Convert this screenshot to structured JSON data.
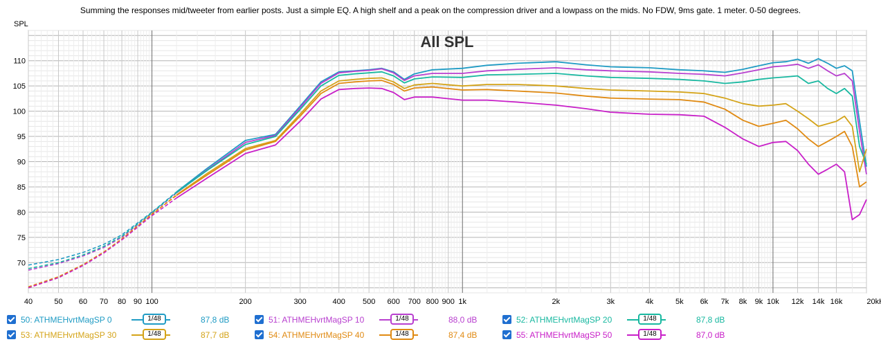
{
  "header": {
    "note": "Summing the responses mid/tweeter from earlier posts. Just a simple EQ. A high shelf and a peak on the compression driver and a lowpass on the mids. No FDW, 9ms gate. 1 meter. 0-50 degrees."
  },
  "chart_data": {
    "type": "line",
    "title": "All SPL",
    "ylabel": "SPL",
    "xlabel": "",
    "x_scale": "log",
    "xlim": [
      40,
      20000
    ],
    "ylim": [
      64,
      116
    ],
    "y_ticks": [
      70,
      75,
      80,
      85,
      90,
      95,
      100,
      105,
      110
    ],
    "y_tick_labels": [
      "70",
      "75",
      "80",
      "85",
      "90",
      "95",
      "100",
      "105",
      "110"
    ],
    "x_ticks": [
      40,
      50,
      60,
      70,
      80,
      90,
      100,
      200,
      300,
      400,
      500,
      600,
      700,
      800,
      900,
      1000,
      2000,
      3000,
      4000,
      5000,
      6000,
      7000,
      8000,
      9000,
      10000,
      12000,
      14000,
      16000,
      20000
    ],
    "x_tick_labels": [
      "40",
      "50",
      "60",
      "70",
      "80",
      "90",
      "100",
      "200",
      "300",
      "400",
      "500",
      "600",
      "700",
      "800",
      "900",
      "1k",
      "2k",
      "3k",
      "4k",
      "5k",
      "6k",
      "7k",
      "8k",
      "9k",
      "10k",
      "12k",
      "14k",
      "16k",
      "20kHz"
    ],
    "grid": true,
    "legend_position": "bottom",
    "x": [
      40,
      50,
      60,
      70,
      80,
      100,
      120,
      150,
      200,
      250,
      300,
      350,
      400,
      450,
      500,
      550,
      600,
      650,
      700,
      800,
      1000,
      1200,
      1500,
      2000,
      2500,
      3000,
      4000,
      5000,
      6000,
      7000,
      8000,
      9000,
      10000,
      11000,
      12000,
      13000,
      14000,
      15000,
      16000,
      17000,
      18000,
      19000,
      20000
    ],
    "dashed_below_hz": 120,
    "series": [
      {
        "name": "50: ATHMEHvrtMagSP 0",
        "color": "#1f9bc4",
        "smoothing": "1/48",
        "level": "87,8 dB",
        "values": [
          69.5,
          70.6,
          72.0,
          73.6,
          75.5,
          80.0,
          84.0,
          88.6,
          94.2,
          95.4,
          101.0,
          105.8,
          107.8,
          108.0,
          108.2,
          108.5,
          107.8,
          106.3,
          107.4,
          108.2,
          108.5,
          109.1,
          109.5,
          109.8,
          109.2,
          108.8,
          108.6,
          108.2,
          108.0,
          107.7,
          108.3,
          109.0,
          109.6,
          109.8,
          110.3,
          109.5,
          110.4,
          109.5,
          108.5,
          109.0,
          108.0,
          98.0,
          89.0
        ]
      },
      {
        "name": "51: ATHMEHvrtMagSP 10",
        "color": "#b83fcf",
        "smoothing": "1/48",
        "level": "88,0 dB",
        "values": [
          68.5,
          69.8,
          71.3,
          73.0,
          75.0,
          79.8,
          83.8,
          88.3,
          93.8,
          95.2,
          100.7,
          105.5,
          107.6,
          107.9,
          108.1,
          108.4,
          107.6,
          106.1,
          107.0,
          107.5,
          107.5,
          108.0,
          108.3,
          108.6,
          108.2,
          108.0,
          107.8,
          107.5,
          107.3,
          107.0,
          107.6,
          108.2,
          108.8,
          109.0,
          109.3,
          108.5,
          109.2,
          108.0,
          107.0,
          107.5,
          106.0,
          96.0,
          87.5
        ]
      },
      {
        "name": "52: ATHMEHvrtMagSP 20",
        "color": "#18b8a0",
        "smoothing": "1/48",
        "level": "87,8 dB",
        "values": [
          68.8,
          70.0,
          71.5,
          73.2,
          75.2,
          79.9,
          83.9,
          88.2,
          93.4,
          95.0,
          100.3,
          105.0,
          107.1,
          107.4,
          107.6,
          107.8,
          107.0,
          105.6,
          106.4,
          106.8,
          106.7,
          107.2,
          107.3,
          107.5,
          107.0,
          106.7,
          106.5,
          106.3,
          106.0,
          105.5,
          105.8,
          106.3,
          106.6,
          106.8,
          107.0,
          105.5,
          106.0,
          104.5,
          103.5,
          104.5,
          103.0,
          93.0,
          89.5
        ]
      },
      {
        "name": "53: ATHMEHvrtMagSP 30",
        "color": "#d4a318",
        "smoothing": "1/48",
        "level": "87,7 dB",
        "values": [
          65.0,
          67.0,
          69.5,
          72.0,
          74.6,
          79.5,
          83.4,
          87.6,
          92.6,
          94.2,
          99.4,
          104.0,
          106.0,
          106.3,
          106.5,
          106.6,
          105.8,
          104.5,
          105.2,
          105.5,
          105.0,
          105.3,
          105.3,
          105.0,
          104.5,
          104.2,
          104.0,
          103.8,
          103.5,
          102.6,
          101.5,
          101.0,
          101.2,
          101.5,
          100.0,
          98.5,
          97.0,
          97.5,
          98.0,
          99.0,
          97.0,
          88.0,
          92.5
        ]
      },
      {
        "name": "54: ATHMEHvrtMagSP 40",
        "color": "#e08a12",
        "smoothing": "1/48",
        "level": "87,4 dB",
        "values": [
          65.2,
          67.2,
          69.6,
          72.1,
          74.7,
          79.6,
          83.3,
          87.3,
          92.3,
          94.0,
          99.0,
          103.5,
          105.5,
          105.8,
          106.0,
          106.1,
          105.3,
          104.0,
          104.6,
          104.8,
          104.2,
          104.3,
          104.0,
          103.6,
          103.0,
          102.6,
          102.4,
          102.3,
          101.8,
          100.4,
          98.2,
          97.0,
          97.6,
          98.2,
          96.5,
          94.5,
          93.0,
          94.0,
          95.0,
          96.0,
          93.0,
          85.0,
          86.0
        ]
      },
      {
        "name": "55: ATHMEHvrtMagSP 50",
        "color": "#c81fc8",
        "smoothing": "1/48",
        "level": "87,0 dB",
        "values": [
          65.0,
          67.0,
          69.4,
          71.9,
          74.5,
          79.3,
          82.8,
          86.7,
          91.6,
          93.3,
          98.0,
          102.4,
          104.3,
          104.5,
          104.6,
          104.5,
          103.7,
          102.3,
          102.8,
          102.8,
          102.2,
          102.2,
          101.8,
          101.2,
          100.5,
          99.8,
          99.4,
          99.3,
          99.0,
          96.8,
          94.5,
          93.0,
          93.8,
          94.0,
          92.2,
          89.5,
          87.5,
          88.5,
          89.5,
          88.0,
          78.5,
          79.5,
          82.5
        ]
      }
    ]
  },
  "legend": {
    "items": [
      {
        "label": "50: ATHMEHvrtMagSP 0",
        "smoothing": "1/48",
        "level": "87,8 dB",
        "color": "#1f9bc4"
      },
      {
        "label": "51: ATHMEHvrtMagSP 10",
        "smoothing": "1/48",
        "level": "88,0 dB",
        "color": "#b83fcf"
      },
      {
        "label": "52: ATHMEHvrtMagSP 20",
        "smoothing": "1/48",
        "level": "87,8 dB",
        "color": "#18b8a0"
      },
      {
        "label": "53: ATHMEHvrtMagSP 30",
        "smoothing": "1/48",
        "level": "87,7 dB",
        "color": "#d4a318"
      },
      {
        "label": "54: ATHMEHvrtMagSP 40",
        "smoothing": "1/48",
        "level": "87,4 dB",
        "color": "#e08a12"
      },
      {
        "label": "55: ATHMEHvrtMagSP 50",
        "smoothing": "1/48",
        "level": "87,0 dB",
        "color": "#c81fc8"
      }
    ]
  }
}
